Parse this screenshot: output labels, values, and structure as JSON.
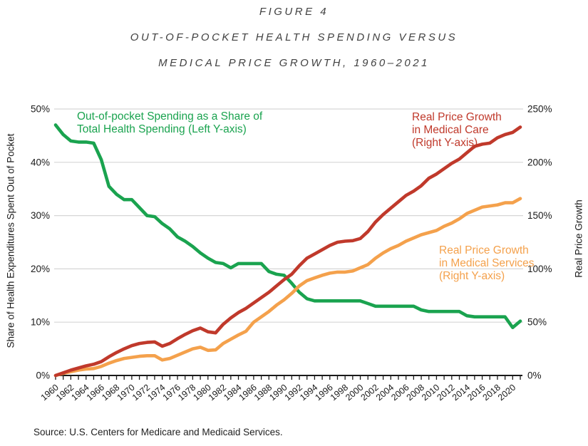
{
  "title": {
    "line1": "FIGURE 4",
    "line2": "OUT-OF-POCKET HEALTH SPENDING VERSUS",
    "line3": "MEDICAL PRICE GROWTH, 1960–2021"
  },
  "source": "Source: U.S. Centers for Medicare and Medicaid Services.",
  "chart_data": {
    "type": "line",
    "grid": true,
    "legend_position": "inline-annotations",
    "x_label": "",
    "x": [
      1960,
      1961,
      1962,
      1963,
      1964,
      1965,
      1966,
      1967,
      1968,
      1969,
      1970,
      1971,
      1972,
      1973,
      1974,
      1975,
      1976,
      1977,
      1978,
      1979,
      1980,
      1981,
      1982,
      1983,
      1984,
      1985,
      1986,
      1987,
      1988,
      1989,
      1990,
      1991,
      1992,
      1993,
      1994,
      1995,
      1996,
      1997,
      1998,
      1999,
      2000,
      2001,
      2002,
      2003,
      2004,
      2005,
      2006,
      2007,
      2008,
      2009,
      2010,
      2011,
      2012,
      2013,
      2014,
      2015,
      2016,
      2017,
      2018,
      2019,
      2020,
      2021
    ],
    "x_tick_labels": [
      "1960",
      "1962",
      "1964",
      "1966",
      "1968",
      "1970",
      "1972",
      "1974",
      "1976",
      "1978",
      "1980",
      "1982",
      "1984",
      "1986",
      "1988",
      "1990",
      "1992",
      "1994",
      "1996",
      "1998",
      "2000",
      "2002",
      "2004",
      "2006",
      "2008",
      "2010",
      "2012",
      "2014",
      "2016",
      "2018",
      "2020"
    ],
    "left_axis": {
      "label": "Share of Health Expenditures Spent Out of Pocket",
      "range": [
        0,
        50
      ],
      "ticks": [
        0,
        10,
        20,
        30,
        40,
        50
      ],
      "tick_labels": [
        "0%",
        "10%",
        "20%",
        "30%",
        "40%",
        "50%"
      ]
    },
    "right_axis": {
      "label": "Real Price Growth",
      "range": [
        0,
        250
      ],
      "ticks": [
        0,
        50,
        100,
        150,
        200,
        250
      ],
      "tick_labels": [
        "0%",
        "50%",
        "100%",
        "150%",
        "200%",
        "250%"
      ]
    },
    "series": [
      {
        "id": "oop",
        "name": "Out-of-pocket Spending as a Share of Total Health Spending",
        "axis": "left",
        "color": "#1aa34f",
        "values": [
          47.0,
          45.2,
          44.0,
          43.8,
          43.8,
          43.6,
          40.5,
          35.5,
          34.0,
          33.0,
          33.0,
          31.5,
          30.0,
          29.8,
          28.5,
          27.5,
          26.0,
          25.2,
          24.2,
          23.0,
          22.0,
          21.2,
          21.0,
          20.2,
          21.0,
          21.0,
          21.0,
          21.0,
          19.5,
          19.0,
          18.8,
          17.3,
          15.6,
          14.4,
          14.0,
          14.0,
          14.0,
          14.0,
          14.0,
          14.0,
          14.0,
          13.5,
          13.0,
          13.0,
          13.0,
          13.0,
          13.0,
          13.0,
          12.3,
          12.0,
          12.0,
          12.0,
          12.0,
          12.0,
          11.2,
          11.0,
          11.0,
          11.0,
          11.0,
          11.0,
          9.0,
          10.2
        ]
      },
      {
        "id": "services",
        "name": "Real Price Growth in Medical Services",
        "axis": "right",
        "color": "#f4a14c",
        "values": [
          0,
          2,
          3.5,
          5,
          6,
          6.5,
          8.5,
          11.5,
          14,
          16,
          17,
          18,
          18.5,
          18.5,
          14.5,
          16,
          19,
          22,
          25,
          26.5,
          23.5,
          24,
          30,
          34,
          38,
          41.5,
          50,
          55,
          60,
          66,
          71,
          77,
          84,
          89,
          91.5,
          94,
          96,
          97,
          97,
          98,
          101,
          104,
          110,
          115,
          119,
          122,
          126,
          129,
          132,
          134,
          136,
          140,
          143,
          147,
          152,
          155,
          158,
          159,
          160,
          162,
          162,
          166
        ]
      },
      {
        "id": "care",
        "name": "Real Price Growth in Medical Care",
        "axis": "right",
        "color": "#c0392b",
        "values": [
          0,
          2.5,
          5,
          7,
          9,
          10.5,
          13,
          17.5,
          21.5,
          25,
          28,
          30,
          31,
          31.5,
          27.5,
          30,
          34.5,
          38.5,
          42,
          44.5,
          41,
          40,
          48,
          54,
          59,
          63,
          68,
          73,
          78,
          84,
          90,
          95,
          103,
          110,
          114,
          118,
          122,
          125,
          126,
          126.5,
          128.5,
          135,
          144,
          151,
          157,
          163,
          169,
          173,
          178,
          185,
          189,
          194,
          199,
          203,
          209,
          215,
          217,
          218,
          223,
          226,
          228,
          233
        ]
      }
    ],
    "annotations": [
      {
        "series": "oop",
        "color": "#1aa34f",
        "lines": [
          "Out-of-pocket Spending as a Share of",
          "Total Health Spending (Left Y-axis)"
        ]
      },
      {
        "series": "care",
        "color": "#c0392b",
        "lines": [
          "Real Price Growth",
          "in Medical Care",
          "(Right Y-axis)"
        ]
      },
      {
        "series": "services",
        "color": "#f4a14c",
        "lines": [
          "Real Price Growth",
          "in Medical Services",
          "(Right Y-axis)"
        ]
      }
    ],
    "style": {
      "grid_color": "#d6d6d6",
      "axis_color": "#1a1a1a",
      "tick_label_color": "#1a1a1a",
      "title_color": "#414141",
      "background": "#ffffff"
    }
  }
}
